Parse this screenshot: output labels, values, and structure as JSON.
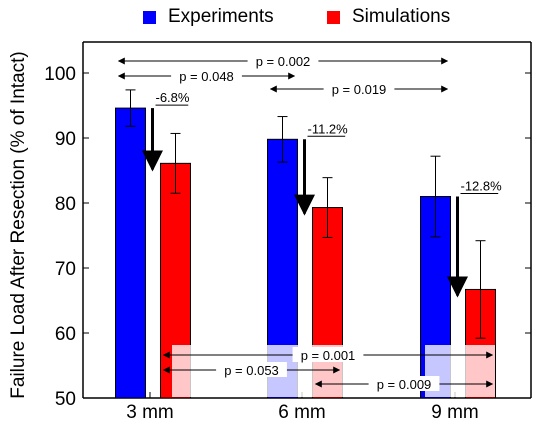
{
  "chart_data": {
    "type": "bar",
    "title": "",
    "xlabel": "",
    "ylabel": "Failure Load After Resection (% of Intact)",
    "ylim": [
      50,
      105
    ],
    "yticks": [
      "50",
      "60",
      "70",
      "80",
      "90",
      "100"
    ],
    "categories": [
      "3 mm",
      "6 mm",
      "9 mm"
    ],
    "legend_position": "top",
    "grid": false,
    "series": [
      {
        "name": "Experiments",
        "color": "#0000ff",
        "values": [
          94.6,
          89.8,
          81.0
        ],
        "error": [
          2.8,
          3.5,
          6.2
        ]
      },
      {
        "name": "Simulations",
        "color": "#ff0000",
        "values": [
          86.1,
          79.3,
          66.7
        ],
        "error": [
          4.6,
          4.6,
          7.5
        ]
      }
    ],
    "decline_labels": [
      "-6.8%",
      "-11.2%",
      "-12.8%"
    ],
    "comparisons": [
      {
        "label": "p = 0.002",
        "from": "3 mm",
        "to": "9 mm",
        "series": "Experiments"
      },
      {
        "label": "p = 0.048",
        "from": "3 mm",
        "to": "6 mm",
        "series": "Experiments"
      },
      {
        "label": "p = 0.019",
        "from": "6 mm",
        "to": "9 mm",
        "series": "Experiments"
      },
      {
        "label": "p = 0.001",
        "from": "3 mm",
        "to": "9 mm",
        "series": "Simulations"
      },
      {
        "label": "p = 0.053",
        "from": "3 mm",
        "to": "6 mm",
        "series": "Simulations"
      },
      {
        "label": "p = 0.009",
        "from": "6 mm",
        "to": "9 mm",
        "series": "Simulations"
      }
    ]
  }
}
